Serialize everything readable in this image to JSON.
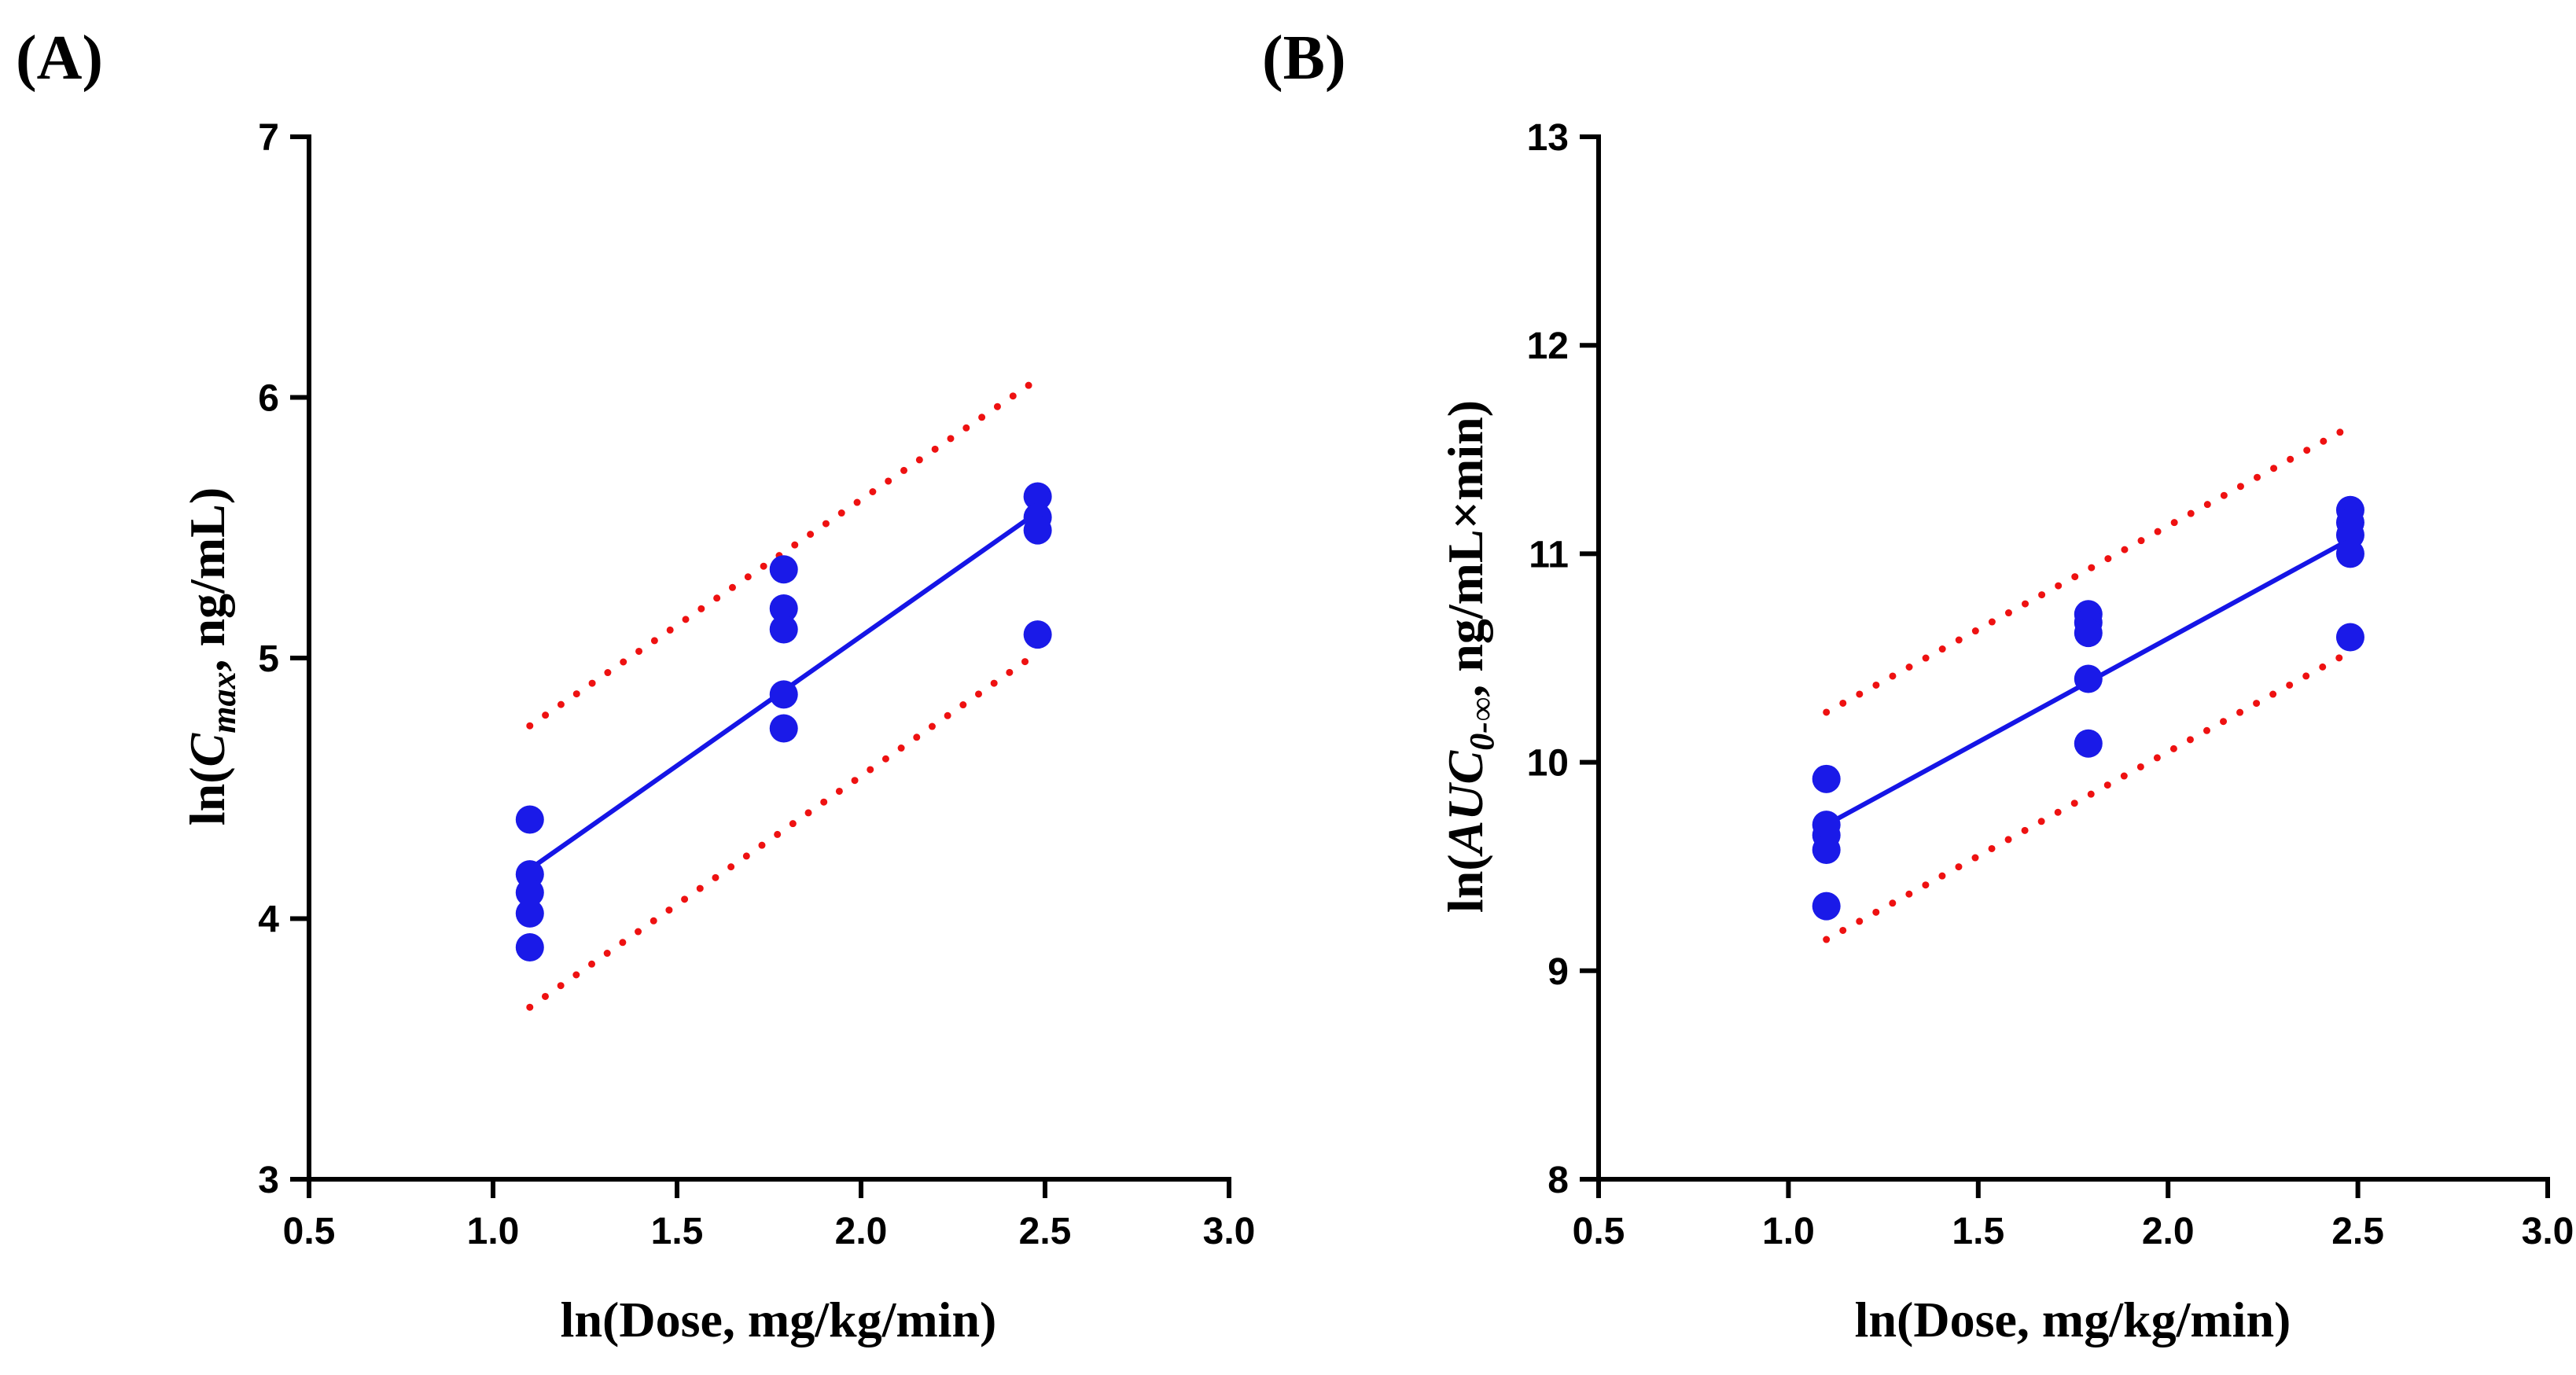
{
  "chart_data": [
    {
      "type": "scatter",
      "panel_label": "(A)",
      "xlabel": "ln(Dose, mg/kg/min)",
      "ylabel_prefix": "ln(",
      "ylabel_main": "C",
      "ylabel_sub": "max",
      "ylabel_suffix": ", ng/mL)",
      "xlim": [
        0.5,
        3.0
      ],
      "ylim": [
        3,
        7
      ],
      "x_ticks": [
        0.5,
        1.0,
        1.5,
        2.0,
        2.5,
        3.0
      ],
      "x_tick_labels": [
        "0.5",
        "1.0",
        "1.5",
        "2.0",
        "2.5",
        "3.0"
      ],
      "y_ticks": [
        3,
        4,
        5,
        6,
        7
      ],
      "y_tick_labels": [
        "3",
        "4",
        "5",
        "6",
        "7"
      ],
      "points": [
        {
          "x": 1.1,
          "y": 4.38
        },
        {
          "x": 1.1,
          "y": 4.17
        },
        {
          "x": 1.1,
          "y": 4.1
        },
        {
          "x": 1.1,
          "y": 4.02
        },
        {
          "x": 1.1,
          "y": 3.89
        },
        {
          "x": 1.79,
          "y": 5.34
        },
        {
          "x": 1.79,
          "y": 5.19
        },
        {
          "x": 1.79,
          "y": 5.11
        },
        {
          "x": 1.79,
          "y": 4.86
        },
        {
          "x": 1.79,
          "y": 4.73
        },
        {
          "x": 2.48,
          "y": 5.62
        },
        {
          "x": 2.48,
          "y": 5.54
        },
        {
          "x": 2.48,
          "y": 5.49
        },
        {
          "x": 2.48,
          "y": 5.09
        }
      ],
      "fit_line": {
        "x": [
          1.1,
          2.48
        ],
        "y": [
          4.19,
          5.56
        ]
      },
      "ci_upper": {
        "x": [
          1.1,
          2.48
        ],
        "y": [
          4.74,
          6.07
        ]
      },
      "ci_lower": {
        "x": [
          1.1,
          2.48
        ],
        "y": [
          3.66,
          5.02
        ]
      },
      "colors": {
        "points": "#1a1ae8",
        "fit": "#1515e6",
        "ci": "#ee1111"
      }
    },
    {
      "type": "scatter",
      "panel_label": "(B)",
      "xlabel": "ln(Dose, mg/kg/min)",
      "ylabel_prefix": "ln(",
      "ylabel_main": "AUC",
      "ylabel_sub": "0-∞",
      "ylabel_suffix": ", ng/mL×min)",
      "xlim": [
        0.5,
        3.0
      ],
      "ylim": [
        8,
        13
      ],
      "x_ticks": [
        0.5,
        1.0,
        1.5,
        2.0,
        2.5,
        3.0
      ],
      "x_tick_labels": [
        "0.5",
        "1.0",
        "1.5",
        "2.0",
        "2.5",
        "3.0"
      ],
      "y_ticks": [
        8,
        9,
        10,
        11,
        12,
        13
      ],
      "y_tick_labels": [
        "8",
        "9",
        "10",
        "11",
        "12",
        "13"
      ],
      "points": [
        {
          "x": 1.1,
          "y": 9.92
        },
        {
          "x": 1.1,
          "y": 9.7
        },
        {
          "x": 1.1,
          "y": 9.65
        },
        {
          "x": 1.1,
          "y": 9.58
        },
        {
          "x": 1.1,
          "y": 9.31
        },
        {
          "x": 1.79,
          "y": 10.71
        },
        {
          "x": 1.79,
          "y": 10.67
        },
        {
          "x": 1.79,
          "y": 10.62
        },
        {
          "x": 1.79,
          "y": 10.4
        },
        {
          "x": 1.79,
          "y": 10.09
        },
        {
          "x": 2.48,
          "y": 11.21
        },
        {
          "x": 2.48,
          "y": 11.15
        },
        {
          "x": 2.48,
          "y": 11.09
        },
        {
          "x": 2.48,
          "y": 11.0
        },
        {
          "x": 2.48,
          "y": 10.6
        }
      ],
      "fit_line": {
        "x": [
          1.1,
          2.48
        ],
        "y": [
          9.7,
          11.07
        ]
      },
      "ci_upper": {
        "x": [
          1.1,
          2.48
        ],
        "y": [
          10.24,
          11.61
        ]
      },
      "ci_lower": {
        "x": [
          1.1,
          2.48
        ],
        "y": [
          9.15,
          10.53
        ]
      },
      "colors": {
        "points": "#1a1ae8",
        "fit": "#1515e6",
        "ci": "#ee1111"
      }
    }
  ]
}
